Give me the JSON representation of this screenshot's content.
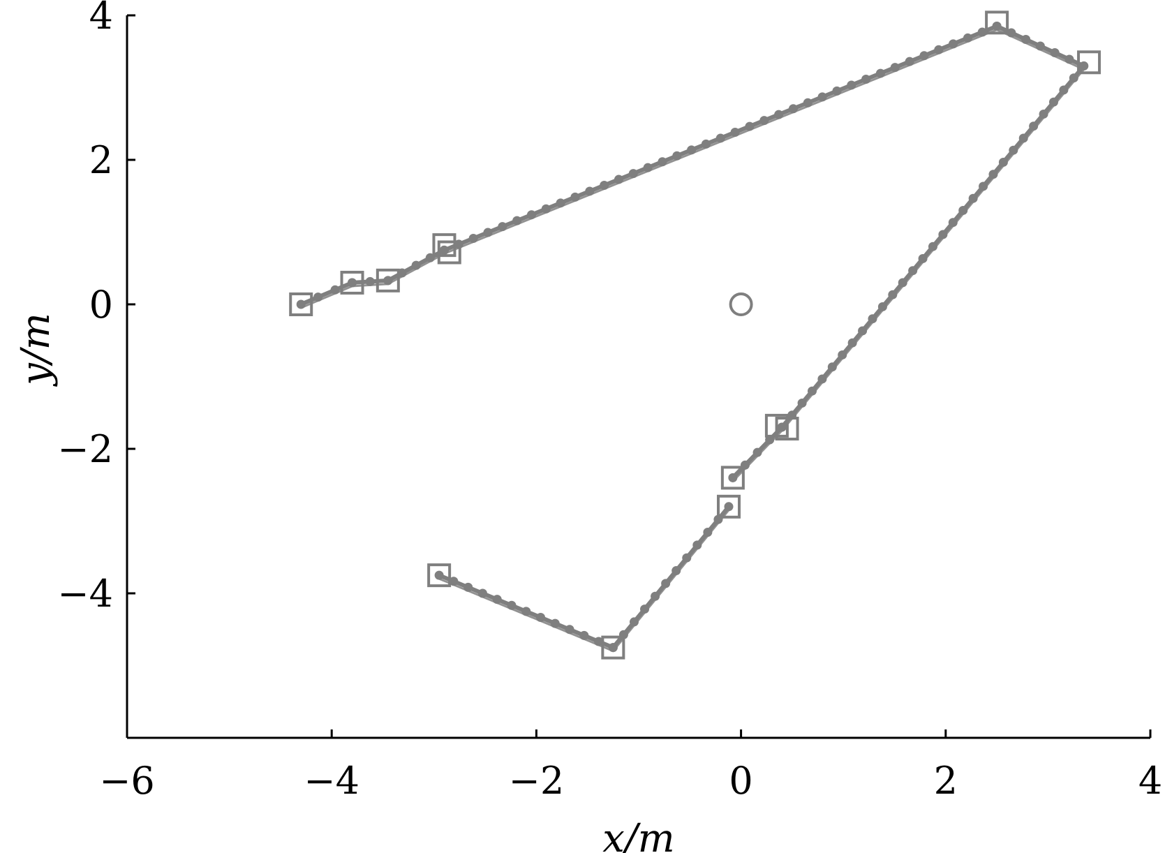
{
  "chart_data": {
    "type": "scatter",
    "title": "",
    "xlabel": "x/m",
    "ylabel": "y/m",
    "xlim": [
      -6,
      4
    ],
    "ylim": [
      -6,
      4
    ],
    "xticks": [
      -6,
      -4,
      -2,
      0,
      2,
      4
    ],
    "yticks": [
      -4,
      -2,
      0,
      2,
      4
    ],
    "xtick_labels": [
      "−6",
      "−4",
      "−2",
      "0",
      "2",
      "4"
    ],
    "ytick_labels": [
      "−4",
      "−2",
      "0",
      "2",
      "4"
    ],
    "grid": false,
    "legend": "none",
    "series": [
      {
        "marker": "square",
        "color": "#7f7f7f",
        "points": [
          [
            -4.3,
            0.0
          ],
          [
            -3.8,
            0.3
          ],
          [
            -3.45,
            0.33
          ],
          [
            -2.9,
            0.82
          ],
          [
            -2.85,
            0.72
          ],
          [
            2.5,
            3.9
          ],
          [
            3.4,
            3.35
          ],
          [
            0.35,
            -1.68
          ],
          [
            0.45,
            -1.72
          ],
          [
            -0.08,
            -2.4
          ],
          [
            -0.12,
            -2.8
          ],
          [
            -2.95,
            -3.75
          ],
          [
            -1.25,
            -4.75
          ]
        ]
      },
      {
        "marker": "dotted-line",
        "color": "#7f7f7f",
        "points": [
          [
            -4.3,
            0.0
          ],
          [
            -3.8,
            0.3
          ],
          [
            -3.45,
            0.33
          ],
          [
            -2.9,
            0.75
          ],
          [
            2.5,
            3.85
          ],
          [
            3.35,
            3.3
          ],
          [
            0.4,
            -1.7
          ],
          [
            -0.08,
            -2.4
          ]
        ]
      },
      {
        "marker": "dotted-line",
        "color": "#7f7f7f",
        "points": [
          [
            -0.12,
            -2.8
          ],
          [
            -1.25,
            -4.75
          ],
          [
            -2.95,
            -3.75
          ]
        ]
      },
      {
        "marker": "circle",
        "color": "#7f7f7f",
        "points": [
          [
            0.0,
            0.0
          ]
        ]
      }
    ]
  }
}
